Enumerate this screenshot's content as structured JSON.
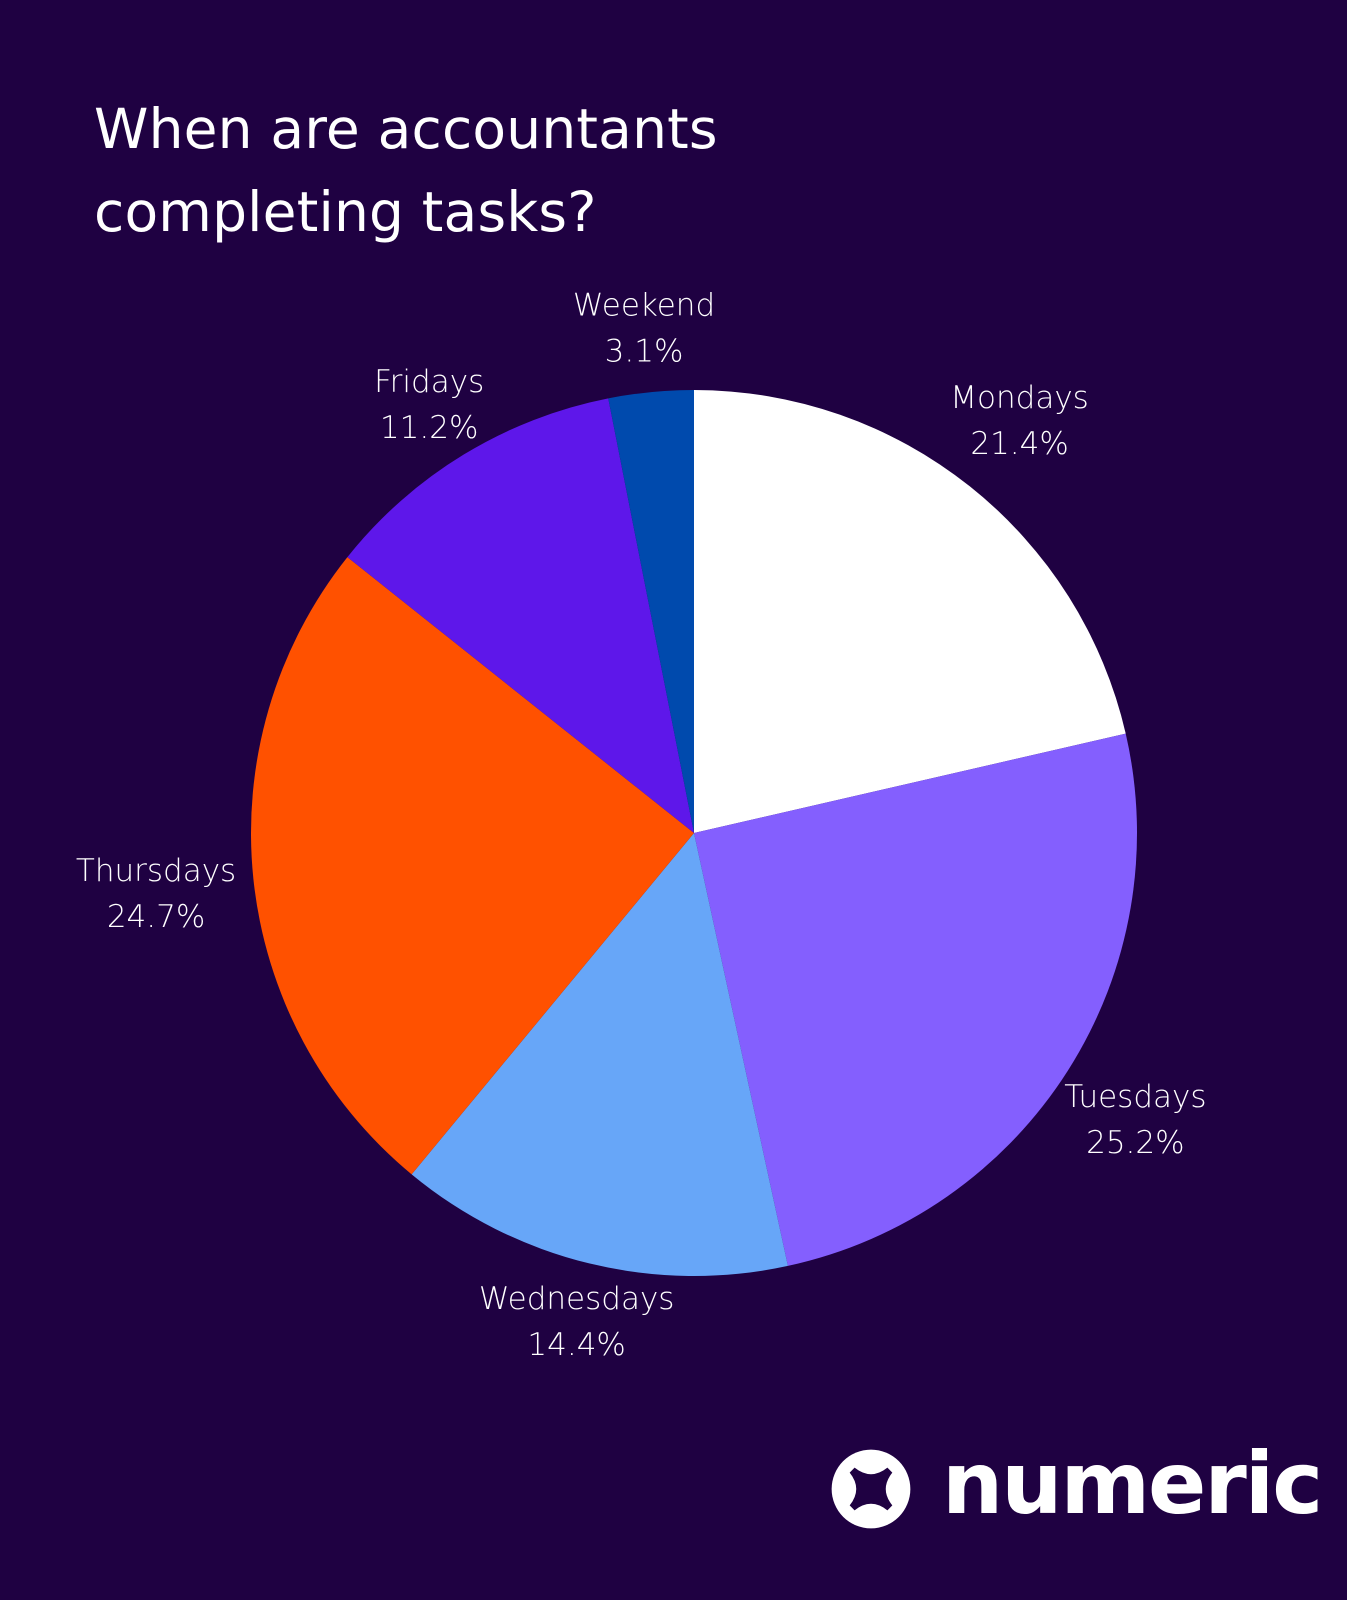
{
  "title": "When are accountants\ncompleting tasks?",
  "brand": {
    "name": "numeric",
    "icon": "numeric-logo-icon"
  },
  "colors": {
    "background": "#1f0142",
    "text": "#ffffff"
  },
  "chart_data": {
    "type": "pie",
    "title": "When are accountants completing tasks?",
    "start": "12 o'clock, clockwise",
    "legend": "none (labels next to slices)",
    "slices": [
      {
        "label": "Mondays",
        "value": 21.4,
        "value_label": "21.4%",
        "color": "#ffffff"
      },
      {
        "label": "Tuesdays",
        "value": 25.2,
        "value_label": "25.2%",
        "color": "#845ffe"
      },
      {
        "label": "Wednesdays",
        "value": 14.4,
        "value_label": "14.4%",
        "color": "#67a6f8"
      },
      {
        "label": "Thursdays",
        "value": 24.7,
        "value_label": "24.7%",
        "color": "#ff5100"
      },
      {
        "label": "Fridays",
        "value": 11.2,
        "value_label": "11.2%",
        "color": "#5e17ea"
      },
      {
        "label": "Weekend",
        "value": 3.1,
        "value_label": "3.1%",
        "color": "#004aad"
      }
    ]
  }
}
